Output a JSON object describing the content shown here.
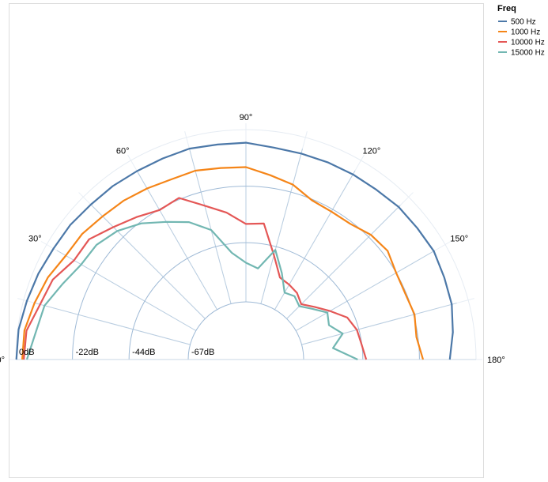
{
  "chart_data": {
    "type": "line",
    "subtype": "polar-half",
    "angle_unit": "deg",
    "angle_range": [
      0,
      180
    ],
    "angle_ticks": [
      "0°",
      "30°",
      "60°",
      "90°",
      "120°",
      "150°",
      "180°"
    ],
    "radial_ticks": [
      "0dB",
      "-22dB",
      "-44dB",
      "-67dB"
    ],
    "radial_range_db": [
      -67,
      0
    ],
    "grid": true,
    "legend": {
      "title": "Freq",
      "position": "top-right"
    },
    "angles": [
      0,
      7.5,
      15,
      22.5,
      30,
      37.5,
      45,
      52.5,
      60,
      67.5,
      75,
      82.5,
      90,
      97.5,
      105,
      112.5,
      120,
      127.5,
      135,
      142.5,
      150,
      157.5,
      165,
      172.5,
      180
    ],
    "series": [
      {
        "name": "500 Hz",
        "color": "#4c78a8",
        "values": [
          -0.2,
          -0.3,
          -1.3,
          -2.1,
          -3.1,
          -3.4,
          -4.2,
          -4.4,
          -4.8,
          -4.8,
          -4.5,
          -5.1,
          -5.1,
          -6.3,
          -6.5,
          -6.4,
          -6.3,
          -6.2,
          -5.5,
          -5.5,
          -5.1,
          -6.0,
          -6.6,
          -8.3,
          -10.2
        ]
      },
      {
        "name": "1000 Hz",
        "color": "#f58518",
        "values": [
          -2.5,
          -2.6,
          -4.4,
          -6.1,
          -8.6,
          -9.2,
          -10.7,
          -11.5,
          -12.6,
          -13.6,
          -13.4,
          -14.3,
          -14.6,
          -17.1,
          -19.0,
          -22.4,
          -23.0,
          -22.9,
          -20.8,
          -20.0,
          -22.0,
          -22.4,
          -21.6,
          -22.6,
          -20.6
        ]
      },
      {
        "name": "10000 Hz",
        "color": "#e45756",
        "values": [
          -3.1,
          -3.4,
          -6.6,
          -8.2,
          -12.3,
          -12.6,
          -16.6,
          -19.6,
          -22.3,
          -21.4,
          -27.5,
          -31.8,
          -36.7,
          -36.1,
          -47.4,
          -54.9,
          -55.8,
          -56.8,
          -59.0,
          -55.8,
          -51.7,
          -46.8,
          -44.8,
          -44.1,
          -42.7
        ]
      },
      {
        "name": "15000 Hz",
        "color": "#72b7b2",
        "values": [
          -4.3,
          -7.1,
          -8.4,
          -12.4,
          -15.5,
          -16.2,
          -18.7,
          -22.7,
          -27.6,
          -31.6,
          -37.3,
          -47.6,
          -51.8,
          -53.7,
          -45.3,
          -53.0,
          -59.4,
          -58.4,
          -60.1,
          -57.0,
          -52.9,
          -54.5,
          -50.5,
          -55.3,
          -46.0
        ]
      }
    ]
  }
}
